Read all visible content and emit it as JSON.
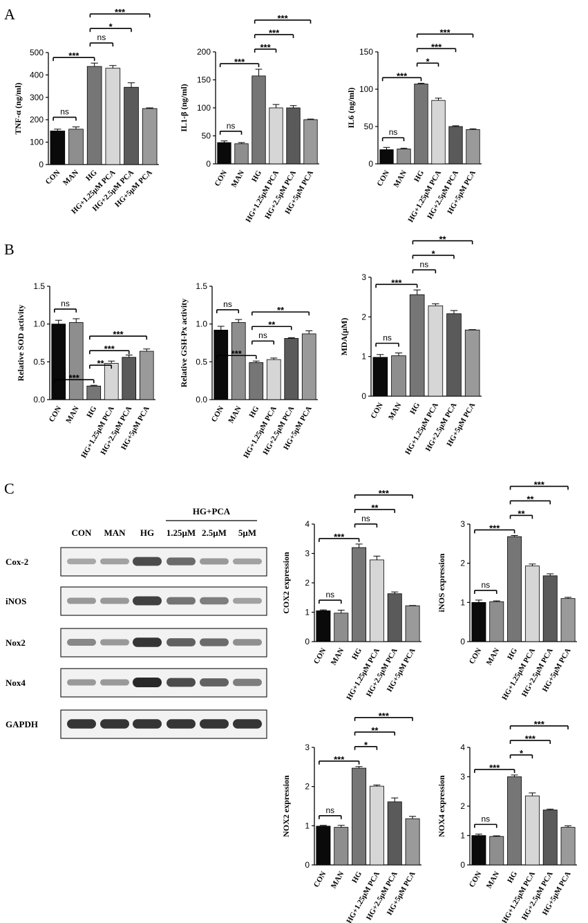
{
  "panels": {
    "a": "A",
    "b": "B",
    "c": "C"
  },
  "colors": {
    "CON": "#0a0a0a",
    "MAN": "#8e8e8e",
    "HG": "#767676",
    "HG+1.25μM PCA": "#d6d6d6",
    "HG+2.5μM PCA": "#5a5a5a",
    "HG+5μM PCA": "#9a9a9a"
  },
  "western_blot": {
    "header": "HG+PCA",
    "lanes": [
      "CON",
      "MAN",
      "HG",
      "1.25μM",
      "2.5μM",
      "5μM"
    ],
    "rows": [
      {
        "label": "Cox-2",
        "intensity": [
          0.35,
          0.4,
          0.85,
          0.7,
          0.45,
          0.4
        ]
      },
      {
        "label": "iNOS",
        "intensity": [
          0.45,
          0.45,
          0.9,
          0.65,
          0.6,
          0.4
        ]
      },
      {
        "label": "Nox2",
        "intensity": [
          0.55,
          0.45,
          0.95,
          0.75,
          0.7,
          0.5
        ]
      },
      {
        "label": "Nox4",
        "intensity": [
          0.45,
          0.45,
          1.0,
          0.85,
          0.75,
          0.6
        ]
      },
      {
        "label": "GAPDH",
        "intensity": [
          0.95,
          0.95,
          0.95,
          0.95,
          0.95,
          0.95
        ]
      }
    ]
  },
  "chart_data": [
    {
      "id": "tnf",
      "type": "bar",
      "ylabel": "TNF-α (ng/ml)",
      "ylim": [
        0,
        500
      ],
      "yticks": [
        0,
        100,
        200,
        300,
        400,
        500
      ],
      "categories": [
        "CON",
        "MAN",
        "HG",
        "HG+1.25μM PCA",
        "HG+2.5μM PCA",
        "HG+5μM PCA"
      ],
      "values": [
        150,
        158,
        438,
        430,
        345,
        250
      ],
      "errors": [
        8,
        10,
        15,
        12,
        20,
        3
      ],
      "annotations": [
        {
          "a": 0,
          "b": 1,
          "text": "ns"
        },
        {
          "a": 0,
          "b": 2,
          "text": "***"
        },
        {
          "a": 2,
          "b": 3,
          "text": "ns"
        },
        {
          "a": 2,
          "b": 4,
          "text": "*"
        },
        {
          "a": 2,
          "b": 5,
          "text": "***"
        }
      ]
    },
    {
      "id": "il1b",
      "type": "bar",
      "ylabel": "IL1-β (ng/ml)",
      "ylim": [
        0,
        200
      ],
      "yticks": [
        0,
        50,
        100,
        150,
        200
      ],
      "categories": [
        "CON",
        "MAN",
        "HG",
        "HG+1.25μM PCA",
        "HG+2.5μM PCA",
        "HG+5μM PCA"
      ],
      "values": [
        38,
        36,
        157,
        100,
        100,
        79
      ],
      "errors": [
        3,
        2,
        12,
        6,
        4,
        1
      ],
      "annotations": [
        {
          "a": 0,
          "b": 1,
          "text": "ns"
        },
        {
          "a": 0,
          "b": 2,
          "text": "***"
        },
        {
          "a": 2,
          "b": 3,
          "text": "***"
        },
        {
          "a": 2,
          "b": 4,
          "text": "***"
        },
        {
          "a": 2,
          "b": 5,
          "text": "***"
        }
      ]
    },
    {
      "id": "il6",
      "type": "bar",
      "ylabel": "IL6 (ng/ml)",
      "ylim": [
        0,
        150
      ],
      "yticks": [
        0,
        50,
        100,
        150
      ],
      "categories": [
        "CON",
        "MAN",
        "HG",
        "HG+1.25μM PCA",
        "HG+2.5μM PCA",
        "HG+5μM PCA"
      ],
      "values": [
        19,
        20,
        107,
        85,
        50,
        46
      ],
      "errors": [
        3,
        1,
        1,
        3,
        1,
        1
      ],
      "annotations": [
        {
          "a": 0,
          "b": 1,
          "text": "ns"
        },
        {
          "a": 0,
          "b": 2,
          "text": "***"
        },
        {
          "a": 2,
          "b": 3,
          "text": "*"
        },
        {
          "a": 2,
          "b": 4,
          "text": "***"
        },
        {
          "a": 2,
          "b": 5,
          "text": "***"
        }
      ]
    },
    {
      "id": "sod",
      "type": "bar",
      "ylabel": "Relative SOD activity",
      "ylim": [
        0,
        1.5
      ],
      "yticks": [
        0.0,
        0.5,
        1.0,
        1.5
      ],
      "categories": [
        "CON",
        "MAN",
        "HG",
        "HG+1.25μM PCA",
        "HG+2.5μM PCA",
        "HG+5μM PCA"
      ],
      "values": [
        1.0,
        1.02,
        0.18,
        0.48,
        0.56,
        0.64
      ],
      "errors": [
        0.05,
        0.05,
        0.01,
        0.03,
        0.03,
        0.03
      ],
      "annotations": [
        {
          "a": 0,
          "b": 1,
          "text": "ns"
        },
        {
          "a": 0,
          "b": 2,
          "text": "***"
        },
        {
          "a": 2,
          "b": 3,
          "text": "**"
        },
        {
          "a": 2,
          "b": 4,
          "text": "***"
        },
        {
          "a": 2,
          "b": 5,
          "text": "***"
        }
      ]
    },
    {
      "id": "gsh",
      "type": "bar",
      "ylabel": "Relative GSH-Px activity",
      "ylim": [
        0,
        1.5
      ],
      "yticks": [
        0.0,
        0.5,
        1.0,
        1.5
      ],
      "categories": [
        "CON",
        "MAN",
        "HG",
        "HG+1.25μM PCA",
        "HG+2.5μM PCA",
        "HG+5μM PCA"
      ],
      "values": [
        0.92,
        1.02,
        0.49,
        0.53,
        0.81,
        0.87
      ],
      "errors": [
        0.05,
        0.04,
        0.02,
        0.02,
        0.01,
        0.04
      ],
      "annotations": [
        {
          "a": 0,
          "b": 1,
          "text": "ns"
        },
        {
          "a": 0,
          "b": 2,
          "text": "***"
        },
        {
          "a": 2,
          "b": 3,
          "text": "ns"
        },
        {
          "a": 2,
          "b": 4,
          "text": "**"
        },
        {
          "a": 2,
          "b": 5,
          "text": "**"
        }
      ]
    },
    {
      "id": "mda",
      "type": "bar",
      "ylabel": "MDA(μM)",
      "ylim": [
        0,
        3
      ],
      "yticks": [
        0,
        1,
        2,
        3
      ],
      "categories": [
        "CON",
        "MAN",
        "HG",
        "HG+1.25μM PCA",
        "HG+2.5μM PCA",
        "HG+5μM PCA"
      ],
      "values": [
        0.98,
        1.02,
        2.56,
        2.28,
        2.08,
        1.67
      ],
      "errors": [
        0.07,
        0.07,
        0.12,
        0.05,
        0.08,
        0.01
      ],
      "annotations": [
        {
          "a": 0,
          "b": 1,
          "text": "ns"
        },
        {
          "a": 0,
          "b": 2,
          "text": "***"
        },
        {
          "a": 2,
          "b": 3,
          "text": "ns"
        },
        {
          "a": 2,
          "b": 4,
          "text": "*"
        },
        {
          "a": 2,
          "b": 5,
          "text": "**"
        }
      ]
    },
    {
      "id": "cox2",
      "type": "bar",
      "ylabel": "COX2 expression",
      "ylim": [
        0,
        4
      ],
      "yticks": [
        0,
        1,
        2,
        3,
        4
      ],
      "categories": [
        "CON",
        "MAN",
        "HG",
        "HG+1.25μM PCA",
        "HG+2.5μM PCA",
        "HG+5μM PCA"
      ],
      "values": [
        1.05,
        0.97,
        3.2,
        2.78,
        1.63,
        1.22
      ],
      "errors": [
        0.03,
        0.1,
        0.12,
        0.13,
        0.06,
        0.01
      ],
      "annotations": [
        {
          "a": 0,
          "b": 1,
          "text": "ns"
        },
        {
          "a": 0,
          "b": 2,
          "text": "***"
        },
        {
          "a": 2,
          "b": 3,
          "text": "ns"
        },
        {
          "a": 2,
          "b": 4,
          "text": "**"
        },
        {
          "a": 2,
          "b": 5,
          "text": "***"
        }
      ]
    },
    {
      "id": "inos",
      "type": "bar",
      "ylabel": "iNOS expression",
      "ylim": [
        0,
        3
      ],
      "yticks": [
        0,
        1,
        2,
        3
      ],
      "categories": [
        "CON",
        "MAN",
        "HG",
        "HG+1.25μM PCA",
        "HG+2.5μM PCA",
        "HG+5μM PCA"
      ],
      "values": [
        1.0,
        1.02,
        2.68,
        1.93,
        1.68,
        1.1
      ],
      "errors": [
        0.06,
        0.02,
        0.03,
        0.05,
        0.05,
        0.03
      ],
      "annotations": [
        {
          "a": 0,
          "b": 1,
          "text": "ns"
        },
        {
          "a": 0,
          "b": 2,
          "text": "***"
        },
        {
          "a": 2,
          "b": 3,
          "text": "**"
        },
        {
          "a": 2,
          "b": 4,
          "text": "**"
        },
        {
          "a": 2,
          "b": 5,
          "text": "***"
        }
      ]
    },
    {
      "id": "nox2",
      "type": "bar",
      "ylabel": "NOX2 expression",
      "ylim": [
        0,
        3
      ],
      "yticks": [
        0,
        1,
        2,
        3
      ],
      "categories": [
        "CON",
        "MAN",
        "HG",
        "HG+1.25μM PCA",
        "HG+2.5μM PCA",
        "HG+5μM PCA"
      ],
      "values": [
        0.99,
        0.96,
        2.47,
        2.01,
        1.61,
        1.18
      ],
      "errors": [
        0.02,
        0.05,
        0.04,
        0.03,
        0.1,
        0.06
      ],
      "annotations": [
        {
          "a": 0,
          "b": 1,
          "text": "ns"
        },
        {
          "a": 0,
          "b": 2,
          "text": "***"
        },
        {
          "a": 2,
          "b": 3,
          "text": "*"
        },
        {
          "a": 2,
          "b": 4,
          "text": "**"
        },
        {
          "a": 2,
          "b": 5,
          "text": "***"
        }
      ]
    },
    {
      "id": "nox4",
      "type": "bar",
      "ylabel": "NOX4 expression",
      "ylim": [
        0,
        4
      ],
      "yticks": [
        0,
        1,
        2,
        3,
        4
      ],
      "categories": [
        "CON",
        "MAN",
        "HG",
        "HG+1.25μM PCA",
        "HG+2.5μM PCA",
        "HG+5μM PCA"
      ],
      "values": [
        1.0,
        0.97,
        3.0,
        2.35,
        1.87,
        1.28
      ],
      "errors": [
        0.05,
        0.02,
        0.06,
        0.1,
        0.03,
        0.05
      ],
      "annotations": [
        {
          "a": 0,
          "b": 1,
          "text": "ns"
        },
        {
          "a": 0,
          "b": 2,
          "text": "***"
        },
        {
          "a": 2,
          "b": 3,
          "text": "*"
        },
        {
          "a": 2,
          "b": 4,
          "text": "***"
        },
        {
          "a": 2,
          "b": 5,
          "text": "***"
        }
      ]
    }
  ]
}
